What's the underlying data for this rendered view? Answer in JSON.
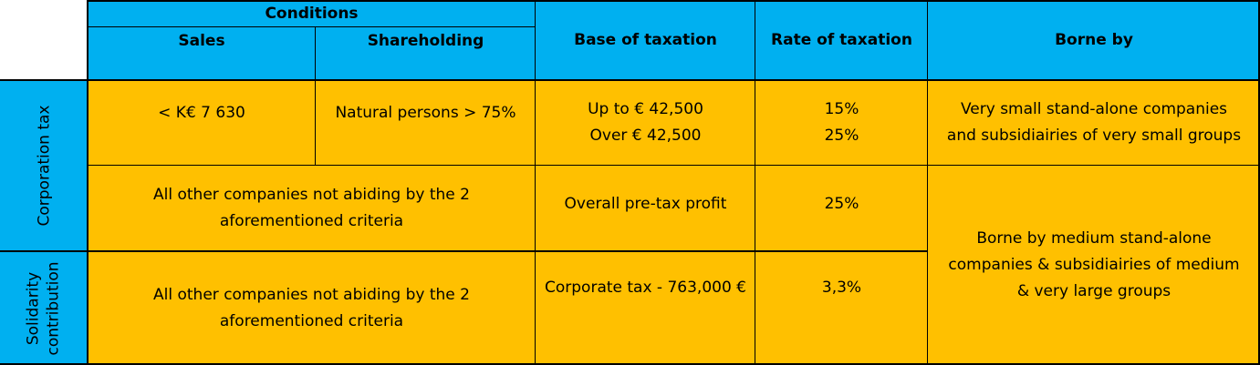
{
  "header": {
    "conditions": "Conditions",
    "sales": "Sales",
    "shareholding": "Shareholding",
    "base": "Base of taxation",
    "rate": "Rate of taxation",
    "borne": "Borne by"
  },
  "rows": {
    "corporation_tax_label": "Corporation tax",
    "solidarity_label_1": "Solidarity",
    "solidarity_label_2": "contribution",
    "row1": {
      "sales": "< K€ 7 630",
      "shareholding": "Natural persons > 75%",
      "base_1": "Up to € 42,500",
      "base_2": "Over € 42,500",
      "rate_1": "15%",
      "rate_2": "25%",
      "borne_1": "Very small stand-alone companies",
      "borne_2": "and subsidiairies of very small groups"
    },
    "row2": {
      "conditions_1": "All other companies not abiding by the 2",
      "conditions_2": "aforementioned criteria",
      "base": "Overall pre-tax profit",
      "rate": "25%"
    },
    "row3": {
      "conditions_1": "All other companies not abiding by the 2",
      "conditions_2": "aforementioned criteria",
      "base": "Corporate tax - 763,000 €",
      "rate": "3,3%"
    },
    "borne_medium_1": "Borne by medium stand-alone",
    "borne_medium_2": "companies & subsidiairies of medium",
    "borne_medium_3": "& very large groups"
  },
  "colors": {
    "header": "#00b0f0",
    "body": "#ffc000"
  }
}
